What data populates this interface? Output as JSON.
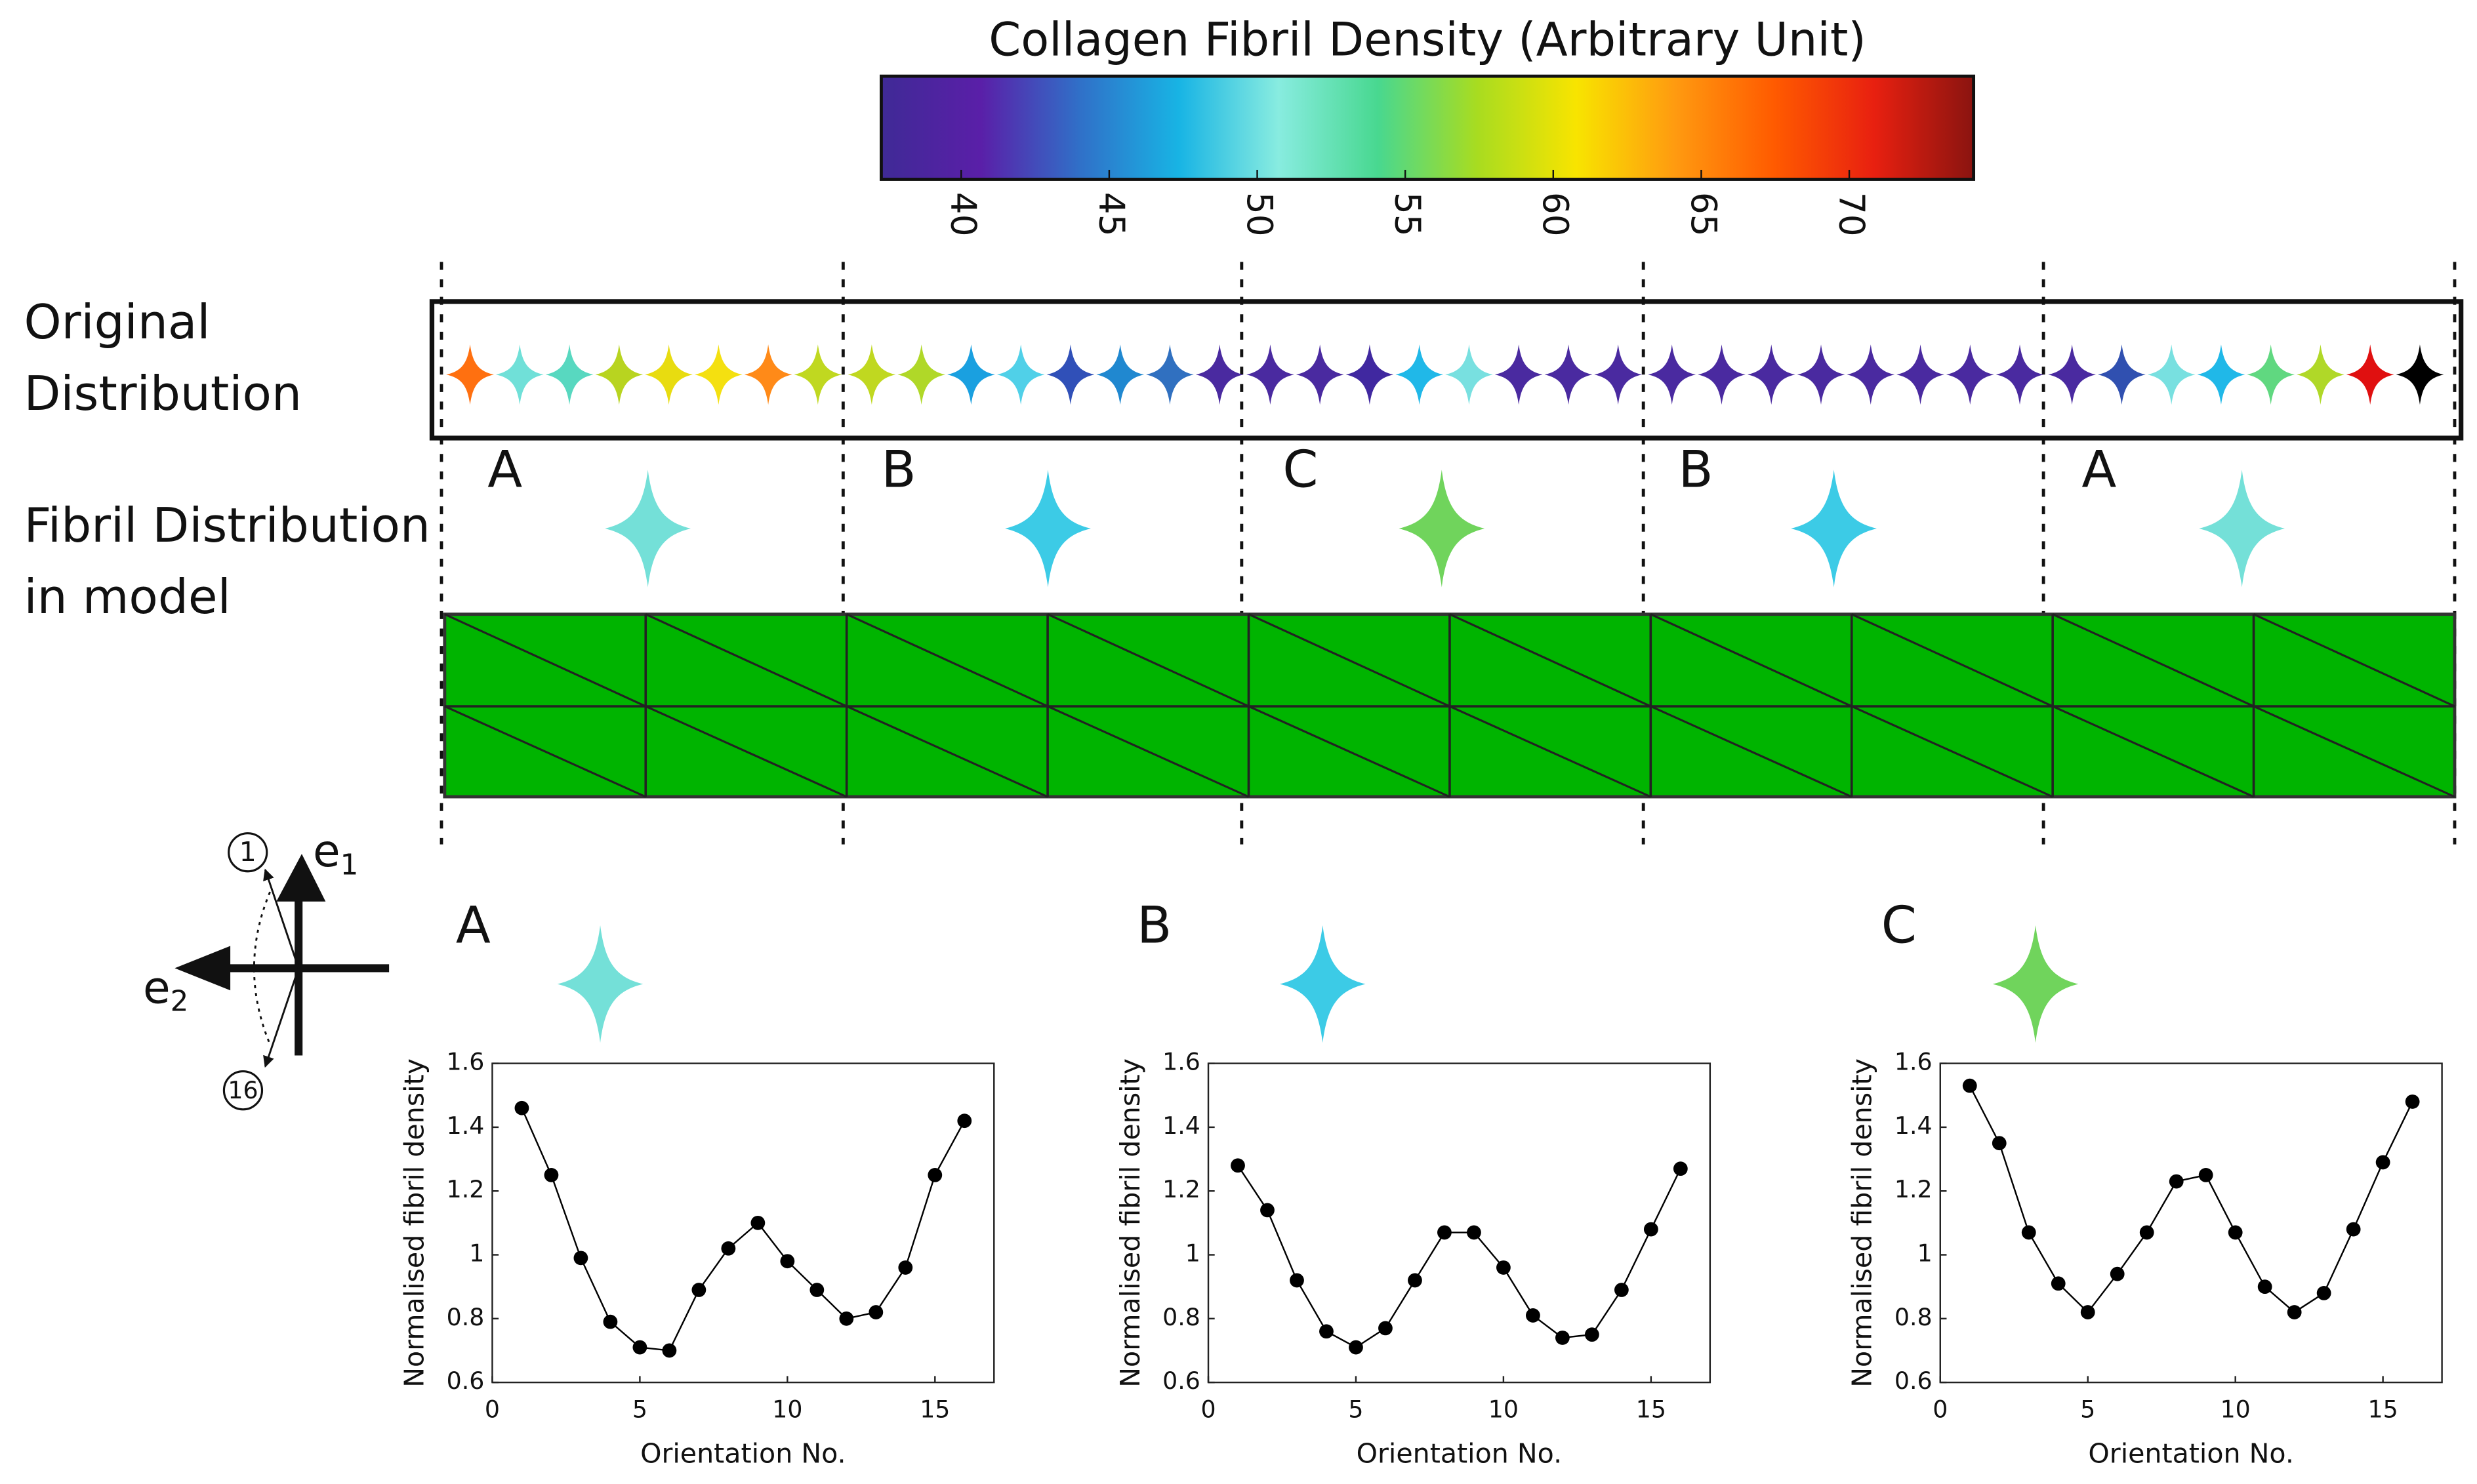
{
  "colorbar": {
    "title": "Collagen Fibril Density (Arbitrary Unit)",
    "lim": [
      37.3,
      74.2
    ],
    "ticks": [
      40,
      45,
      50,
      55,
      60,
      65,
      70
    ],
    "colormap": [
      "#3f2a96",
      "#5a1fa8",
      "#3070c8",
      "#18b4e4",
      "#88ece0",
      "#48d890",
      "#a8dc20",
      "#f8e400",
      "#ff9a10",
      "#ff5a00",
      "#e82010",
      "#8a1410"
    ]
  },
  "row_labels": [
    "Original",
    "Distribution",
    "Fibril Distribution",
    "in model"
  ],
  "section_labels": [
    "A",
    "B",
    "C",
    "B",
    "A"
  ],
  "section_colors": [
    "#74e0d8",
    "#3ccbe6",
    "#70d45c",
    "#3ccbe6",
    "#74e0d8"
  ],
  "original_colors": [
    "#ff7010",
    "#70e0d8",
    "#58d8c0",
    "#b8d420",
    "#e8dc10",
    "#f4e010",
    "#ff8a18",
    "#c0d820",
    "#c0d820",
    "#b0d828",
    "#1aa0e0",
    "#50d0e8",
    "#3050b8",
    "#2088d0",
    "#3070c0",
    "#4a2aa0",
    "#4a2aa0",
    "#4a2aa0",
    "#4028a0",
    "#20b8e8",
    "#78e0e0",
    "#4a2aa0",
    "#4a2aa0",
    "#4a2aa0",
    "#4a2aa0",
    "#4a2aa0",
    "#4a2aa0",
    "#4a2aa0",
    "#4a2aa0",
    "#4a2aa0",
    "#4a2aa0",
    "#4a2aa0",
    "#4a2aa0",
    "#3050b0",
    "#78e0e0",
    "#20b8e8",
    "#60d880",
    "#b0d828",
    "#e01010",
    "#000000"
  ],
  "mesh_color": "#00b400",
  "axes_diagram": {
    "e1": [
      "e",
      "1"
    ],
    "e2": [
      "e",
      "2"
    ],
    "first": "1",
    "last": "16"
  },
  "chart_data": [
    {
      "type": "line",
      "title": "A",
      "icon_color": "#74e0d8",
      "color": "#000000",
      "xlabel": "Orientation No.",
      "ylabel": "Normalised fibril density",
      "x": [
        1,
        2,
        3,
        4,
        5,
        6,
        7,
        8,
        9,
        10,
        11,
        12,
        13,
        14,
        15,
        16
      ],
      "values": [
        1.46,
        1.25,
        0.99,
        0.79,
        0.71,
        0.7,
        0.89,
        1.02,
        1.1,
        0.98,
        0.89,
        0.8,
        0.82,
        0.96,
        1.25,
        1.42
      ],
      "xlim": [
        0,
        17
      ],
      "ylim": [
        0.6,
        1.6
      ],
      "xticks": [
        0,
        5,
        10,
        15
      ],
      "yticks": [
        0.6,
        0.8,
        1,
        1.2,
        1.4,
        1.6
      ]
    },
    {
      "type": "line",
      "title": "B",
      "icon_color": "#3ccbe6",
      "color": "#000000",
      "xlabel": "Orientation No.",
      "ylabel": "Normalised fibril density",
      "x": [
        1,
        2,
        3,
        4,
        5,
        6,
        7,
        8,
        9,
        10,
        11,
        12,
        13,
        14,
        15,
        16
      ],
      "values": [
        1.28,
        1.14,
        0.92,
        0.76,
        0.71,
        0.77,
        0.92,
        1.07,
        1.07,
        0.96,
        0.81,
        0.74,
        0.75,
        0.89,
        1.08,
        1.27
      ],
      "xlim": [
        0,
        17
      ],
      "ylim": [
        0.6,
        1.6
      ],
      "xticks": [
        0,
        5,
        10,
        15
      ],
      "yticks": [
        0.6,
        0.8,
        1,
        1.2,
        1.4,
        1.6
      ]
    },
    {
      "type": "line",
      "title": "C",
      "icon_color": "#70d45c",
      "color": "#000000",
      "xlabel": "Orientation No.",
      "ylabel": "Normalised fibril density",
      "x": [
        1,
        2,
        3,
        4,
        5,
        6,
        7,
        8,
        9,
        10,
        11,
        12,
        13,
        14,
        15,
        16
      ],
      "values": [
        1.53,
        1.35,
        1.07,
        0.91,
        0.82,
        0.94,
        1.07,
        1.23,
        1.25,
        1.07,
        0.9,
        0.82,
        0.88,
        1.08,
        1.29,
        1.48
      ],
      "xlim": [
        0,
        17
      ],
      "ylim": [
        0.6,
        1.6
      ],
      "xticks": [
        0,
        5,
        10,
        15
      ],
      "yticks": [
        0.6,
        0.8,
        1,
        1.2,
        1.4,
        1.6
      ]
    }
  ]
}
